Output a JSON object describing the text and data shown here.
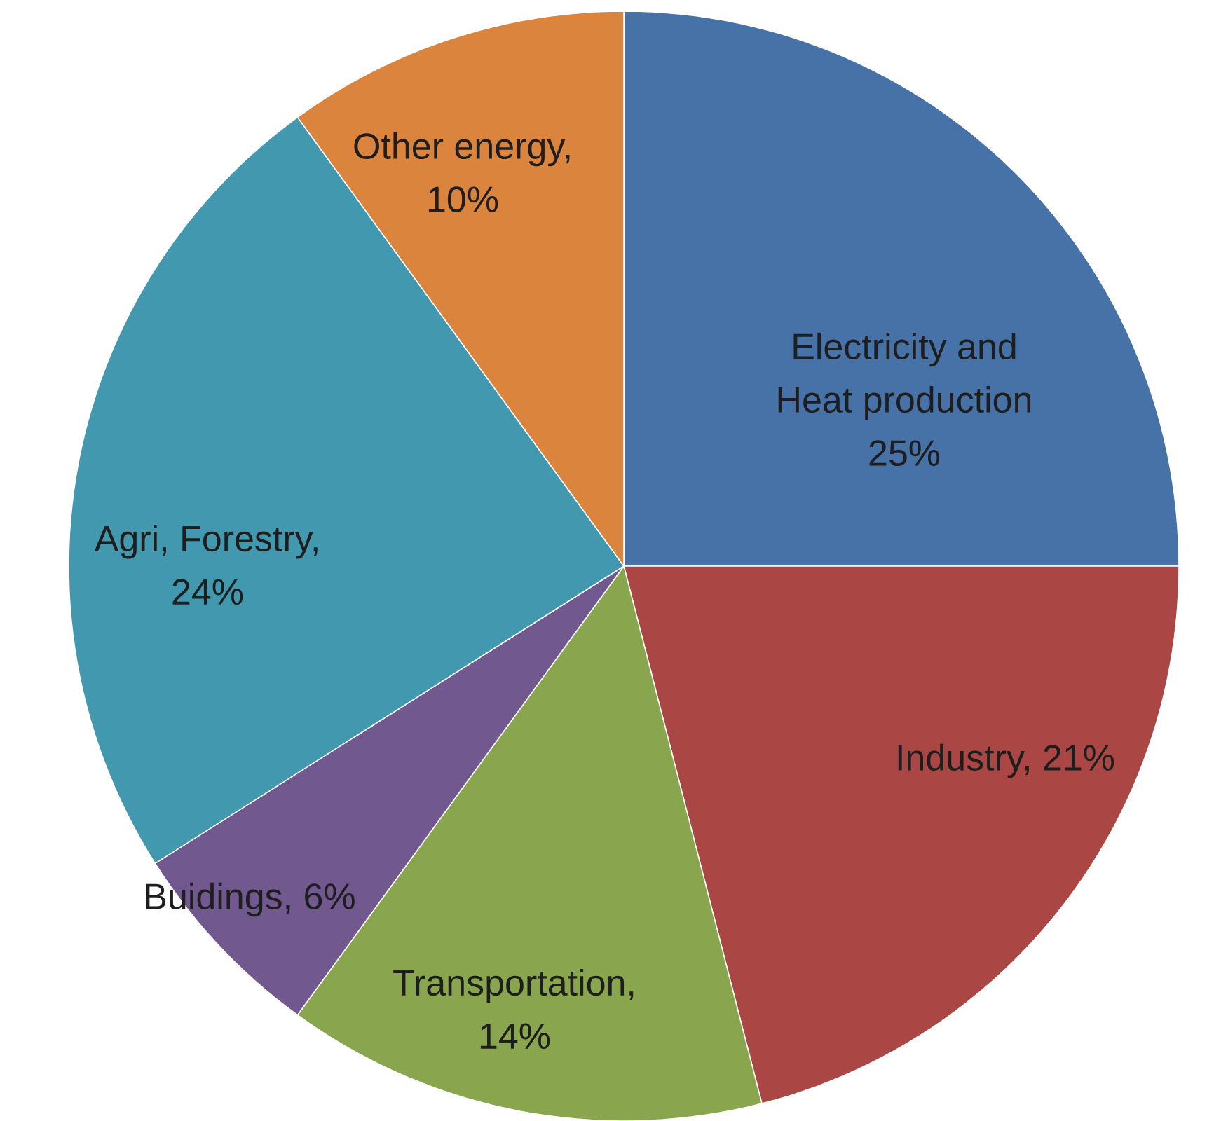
{
  "chart_data": {
    "type": "pie",
    "categories": [
      "Electricity and Heat production 25%",
      "Industry, 21%",
      "Transportation, 14%",
      "Buidings, 6%",
      "Agri, Forestry, 24%",
      "Other energy, 10%"
    ],
    "values": [
      25,
      21,
      14,
      6,
      24,
      10
    ],
    "colors": [
      "#4672a8",
      "#aa4744",
      "#89a54e",
      "#71588f",
      "#4198af",
      "#db843d"
    ]
  }
}
